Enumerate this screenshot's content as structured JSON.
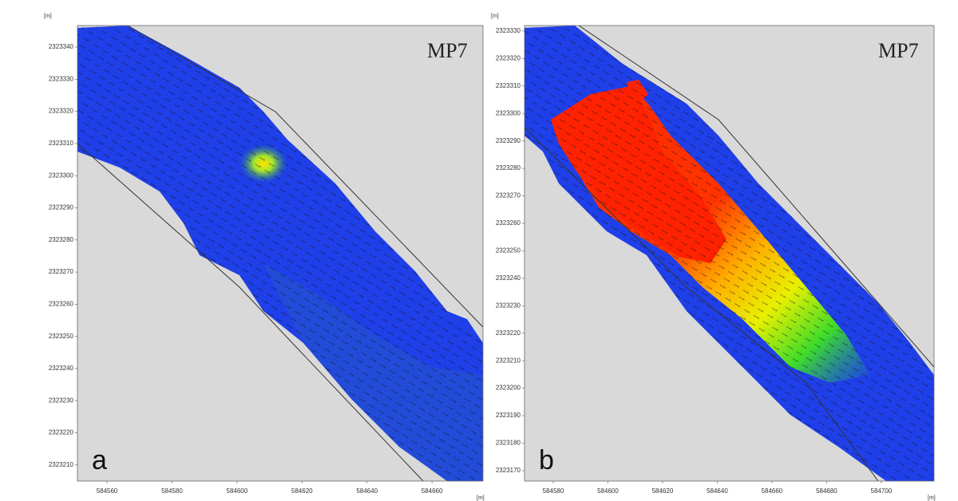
{
  "panels": [
    {
      "label": "a",
      "title": "MP7",
      "y_unit": "[m]",
      "x_unit": "[m]",
      "xlim": [
        584550.9,
        584675.7
      ],
      "ylim": [
        2323205,
        2323346.7
      ],
      "xticks": [
        584560,
        584580,
        584600,
        584620,
        584640,
        584660
      ],
      "yticks": [
        2323340,
        2323330,
        2323320,
        2323310,
        2323300,
        2323290,
        2323280,
        2323270,
        2323260,
        2323250,
        2323240,
        2323230,
        2323220,
        2323210
      ]
    },
    {
      "label": "b",
      "title": "MP7",
      "y_unit": "[m]",
      "x_unit": "[m]",
      "xlim": [
        584569.5,
        584719.3
      ],
      "ylim": [
        2323166.2,
        2323332
      ],
      "xticks": [
        584580,
        584600,
        584620,
        584640,
        584660,
        584680,
        584700
      ],
      "yticks": [
        2323330,
        2323320,
        2323310,
        2323300,
        2323290,
        2323280,
        2323270,
        2323260,
        2323250,
        2323240,
        2323230,
        2323220,
        2323210,
        2323200,
        2323190,
        2323180,
        2323170
      ]
    }
  ]
}
